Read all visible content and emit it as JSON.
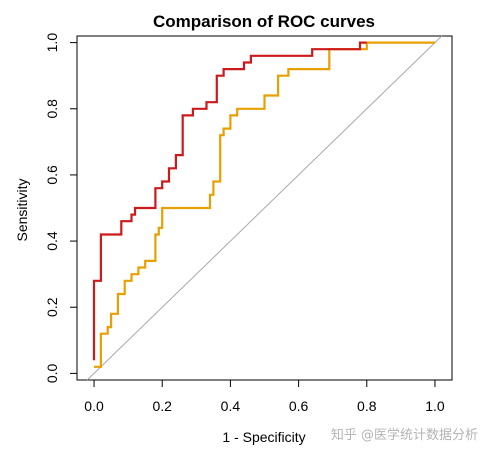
{
  "chart_data": {
    "type": "line",
    "title": "Comparison of ROC curves",
    "xlabel": "1 - Specificity",
    "ylabel": "Sensitivity",
    "xlim": [
      -0.05,
      1.05
    ],
    "ylim": [
      -0.02,
      1.02
    ],
    "xticks": [
      "0.0",
      "0.2",
      "0.4",
      "0.6",
      "0.8",
      "1.0"
    ],
    "yticks": [
      "0.0",
      "0.2",
      "0.4",
      "0.6",
      "0.8",
      "1.0"
    ],
    "grid": false,
    "legend": "none",
    "reference_line": {
      "x": [
        0,
        1
      ],
      "y": [
        0,
        1
      ],
      "color": "#a8a8a8"
    },
    "series": [
      {
        "color": "#cc1a1a",
        "points": [
          [
            0.0,
            0.04
          ],
          [
            0.0,
            0.28
          ],
          [
            0.02,
            0.28
          ],
          [
            0.02,
            0.42
          ],
          [
            0.08,
            0.42
          ],
          [
            0.08,
            0.46
          ],
          [
            0.11,
            0.46
          ],
          [
            0.11,
            0.48
          ],
          [
            0.12,
            0.48
          ],
          [
            0.12,
            0.5
          ],
          [
            0.18,
            0.5
          ],
          [
            0.18,
            0.56
          ],
          [
            0.2,
            0.56
          ],
          [
            0.2,
            0.58
          ],
          [
            0.22,
            0.58
          ],
          [
            0.22,
            0.62
          ],
          [
            0.24,
            0.62
          ],
          [
            0.24,
            0.66
          ],
          [
            0.26,
            0.66
          ],
          [
            0.26,
            0.78
          ],
          [
            0.29,
            0.78
          ],
          [
            0.29,
            0.8
          ],
          [
            0.33,
            0.8
          ],
          [
            0.33,
            0.82
          ],
          [
            0.36,
            0.82
          ],
          [
            0.36,
            0.9
          ],
          [
            0.38,
            0.9
          ],
          [
            0.38,
            0.92
          ],
          [
            0.44,
            0.92
          ],
          [
            0.44,
            0.94
          ],
          [
            0.46,
            0.94
          ],
          [
            0.46,
            0.96
          ],
          [
            0.64,
            0.96
          ],
          [
            0.64,
            0.98
          ],
          [
            0.78,
            0.98
          ],
          [
            0.78,
            1.0
          ],
          [
            0.8,
            1.0
          ]
        ]
      },
      {
        "color": "#e8a000",
        "points": [
          [
            0.0,
            0.02
          ],
          [
            0.02,
            0.02
          ],
          [
            0.02,
            0.12
          ],
          [
            0.04,
            0.12
          ],
          [
            0.04,
            0.14
          ],
          [
            0.05,
            0.14
          ],
          [
            0.05,
            0.18
          ],
          [
            0.07,
            0.18
          ],
          [
            0.07,
            0.24
          ],
          [
            0.09,
            0.24
          ],
          [
            0.09,
            0.28
          ],
          [
            0.11,
            0.28
          ],
          [
            0.11,
            0.3
          ],
          [
            0.13,
            0.3
          ],
          [
            0.13,
            0.32
          ],
          [
            0.15,
            0.32
          ],
          [
            0.15,
            0.34
          ],
          [
            0.18,
            0.34
          ],
          [
            0.18,
            0.42
          ],
          [
            0.19,
            0.42
          ],
          [
            0.19,
            0.44
          ],
          [
            0.2,
            0.44
          ],
          [
            0.2,
            0.5
          ],
          [
            0.34,
            0.5
          ],
          [
            0.34,
            0.54
          ],
          [
            0.35,
            0.54
          ],
          [
            0.35,
            0.58
          ],
          [
            0.37,
            0.58
          ],
          [
            0.37,
            0.72
          ],
          [
            0.38,
            0.72
          ],
          [
            0.38,
            0.74
          ],
          [
            0.4,
            0.74
          ],
          [
            0.4,
            0.78
          ],
          [
            0.42,
            0.78
          ],
          [
            0.42,
            0.8
          ],
          [
            0.5,
            0.8
          ],
          [
            0.5,
            0.84
          ],
          [
            0.54,
            0.84
          ],
          [
            0.54,
            0.9
          ],
          [
            0.57,
            0.9
          ],
          [
            0.57,
            0.92
          ],
          [
            0.69,
            0.92
          ],
          [
            0.69,
            0.98
          ],
          [
            0.8,
            0.98
          ],
          [
            0.8,
            1.0
          ],
          [
            1.0,
            1.0
          ]
        ]
      }
    ]
  },
  "watermark": "知乎 @医学统计数据分析"
}
